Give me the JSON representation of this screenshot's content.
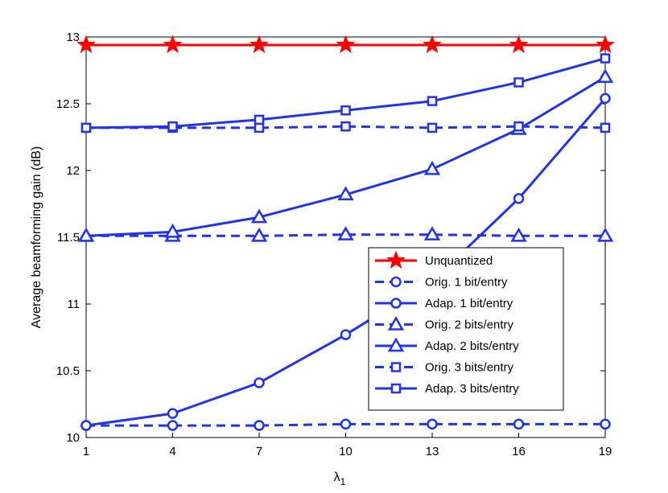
{
  "chart_data": {
    "type": "line",
    "x": [
      1,
      4,
      7,
      10,
      13,
      16,
      19
    ],
    "xlim": [
      1,
      19
    ],
    "ylim": [
      10,
      13
    ],
    "xticks": [
      "1",
      "4",
      "7",
      "10",
      "13",
      "16",
      "19"
    ],
    "yticks": [
      "10",
      "10.5",
      "11",
      "11.5",
      "12",
      "12.5",
      "13"
    ],
    "xlabel": "λ",
    "xlabel_sub": "1",
    "ylabel": "Average beamforming gain (dB)",
    "grid": false,
    "legend_position": "bottom-right",
    "series": [
      {
        "name": "Unquantized",
        "color": "#ff0000",
        "dash": "solid",
        "marker": "star",
        "values": [
          12.94,
          12.94,
          12.94,
          12.94,
          12.94,
          12.94,
          12.94
        ]
      },
      {
        "name": "Orig. 1 bit/entry",
        "color": "#2233ee",
        "dash": "dashed",
        "marker": "circle",
        "values": [
          10.09,
          10.09,
          10.09,
          10.1,
          10.1,
          10.1,
          10.1
        ]
      },
      {
        "name": "Adap. 1 bit/entry",
        "color": "#2233ee",
        "dash": "solid",
        "marker": "circle",
        "values": [
          10.09,
          10.18,
          10.41,
          10.77,
          11.17,
          11.79,
          12.54
        ]
      },
      {
        "name": "Orig. 2 bits/entry",
        "color": "#2233ee",
        "dash": "dashed",
        "marker": "triangle",
        "values": [
          11.51,
          11.51,
          11.51,
          11.52,
          11.52,
          11.51,
          11.51
        ]
      },
      {
        "name": "Adap. 2 bits/entry",
        "color": "#2233ee",
        "dash": "solid",
        "marker": "triangle",
        "values": [
          11.51,
          11.54,
          11.65,
          11.82,
          12.01,
          12.31,
          12.7
        ]
      },
      {
        "name": "Orig. 3 bits/entry",
        "color": "#2233ee",
        "dash": "dashed",
        "marker": "square",
        "values": [
          12.32,
          12.32,
          12.32,
          12.33,
          12.32,
          12.33,
          12.32
        ]
      },
      {
        "name": "Adap. 3 bits/entry",
        "color": "#2233ee",
        "dash": "solid",
        "marker": "square",
        "values": [
          12.32,
          12.33,
          12.38,
          12.45,
          12.52,
          12.66,
          12.84
        ]
      }
    ]
  }
}
